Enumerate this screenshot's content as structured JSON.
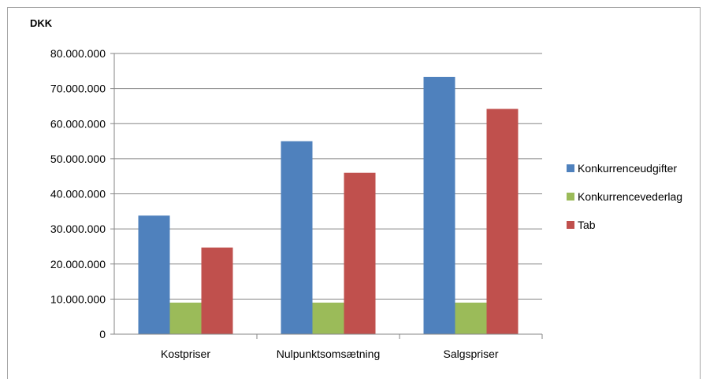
{
  "chart_data": {
    "type": "bar",
    "title": "",
    "ylabel": "DKK",
    "xlabel": "",
    "ylim": [
      0,
      80000000
    ],
    "yticks": [
      0,
      10000000,
      20000000,
      30000000,
      40000000,
      50000000,
      60000000,
      70000000,
      80000000
    ],
    "ytick_labels": [
      "0",
      "10.000.000",
      "20.000.000",
      "30.000.000",
      "40.000.000",
      "50.000.000",
      "60.000.000",
      "70.000.000",
      "80.000.000"
    ],
    "categories": [
      "Kostpriser",
      "Nulpunktsomsætning",
      "Salgspriser"
    ],
    "series": [
      {
        "name": "Konkurrenceudgifter",
        "color": "#4f81bd",
        "values": [
          33800000,
          55000000,
          73300000
        ]
      },
      {
        "name": "Konkurrencevederlag",
        "color": "#9bbb59",
        "values": [
          9000000,
          9000000,
          9000000
        ]
      },
      {
        "name": "Tab",
        "color": "#c0504d",
        "values": [
          24700000,
          46000000,
          64200000
        ]
      }
    ],
    "grid": true,
    "legend_position": "right"
  }
}
